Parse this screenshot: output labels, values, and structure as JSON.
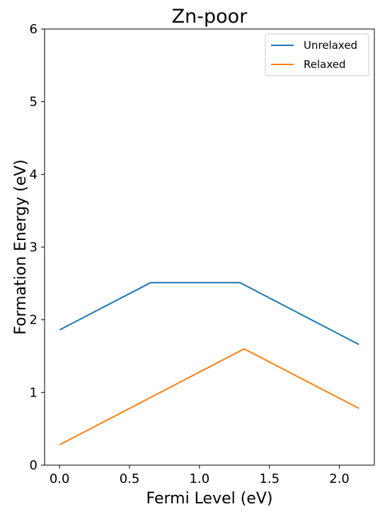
{
  "chart_data": {
    "type": "line",
    "title": "Zn-poor",
    "xlabel": "Fermi Level (eV)",
    "ylabel": "Formation Energy (eV)",
    "xlim": [
      -0.107,
      2.25
    ],
    "ylim": [
      0,
      6
    ],
    "xticks": [
      "0.0",
      "0.5",
      "1.0",
      "1.5",
      "2.0"
    ],
    "xtick_values": [
      0.0,
      0.5,
      1.0,
      1.5,
      2.0
    ],
    "yticks": [
      "0",
      "1",
      "2",
      "3",
      "4",
      "5",
      "6"
    ],
    "ytick_values": [
      0,
      1,
      2,
      3,
      4,
      5,
      6
    ],
    "grid": false,
    "legend_position": "top-right",
    "series": [
      {
        "name": "Unrelaxed",
        "color": "#1f77b4",
        "x": [
          0.0,
          0.65,
          1.29,
          2.14
        ],
        "y": [
          1.86,
          2.51,
          2.51,
          1.66
        ]
      },
      {
        "name": "Relaxed",
        "color": "#ff7f0e",
        "x": [
          0.0,
          1.32,
          2.14
        ],
        "y": [
          0.28,
          1.6,
          0.78
        ]
      }
    ]
  }
}
